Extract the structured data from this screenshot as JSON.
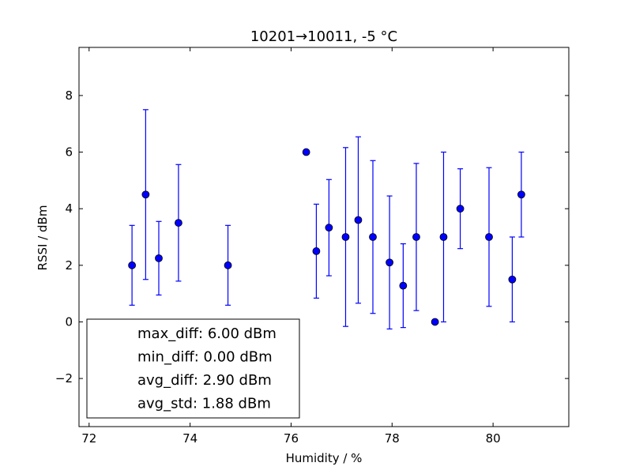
{
  "chart_data": {
    "type": "scatter",
    "title": "10201→10011, -5 °C",
    "xlabel": "Humidity / %",
    "ylabel": "RSSI / dBm",
    "xlim": [
      71.8,
      81.5
    ],
    "ylim": [
      -3.7,
      9.7
    ],
    "xticks": [
      72,
      74,
      76,
      78,
      80
    ],
    "xtick_labels": [
      "72",
      "74",
      "76",
      "78",
      "80"
    ],
    "yticks": [
      -2,
      0,
      2,
      4,
      6,
      8
    ],
    "ytick_labels": [
      "−2",
      "0",
      "2",
      "4",
      "6",
      "8"
    ],
    "grid": false,
    "marker_color": "#0000ff",
    "series": [
      {
        "x": [
          72.85,
          73.12,
          73.38,
          73.77,
          74.75,
          76.3,
          76.5,
          76.75,
          77.08,
          77.33,
          77.62,
          77.95,
          78.22,
          78.48,
          78.85,
          79.02,
          79.35,
          79.92,
          80.38,
          80.56
        ],
        "y": [
          2.0,
          4.5,
          2.25,
          3.5,
          2.0,
          6.0,
          2.5,
          3.33,
          3.0,
          3.6,
          3.0,
          2.1,
          1.28,
          3.0,
          0.0,
          3.0,
          4.0,
          3.0,
          1.5,
          4.5
        ],
        "yerr": [
          1.41,
          3.0,
          1.3,
          2.06,
          1.41,
          0.0,
          1.66,
          1.7,
          3.16,
          2.94,
          2.7,
          2.35,
          1.48,
          2.6,
          0.0,
          3.0,
          1.41,
          2.45,
          1.5,
          1.5
        ]
      }
    ],
    "legend": {
      "location": "lower-left",
      "entries": [
        "max_diff: 6.00 dBm",
        "min_diff: 0.00 dBm",
        "avg_diff: 2.90 dBm",
        "avg_std: 1.88 dBm"
      ]
    }
  }
}
